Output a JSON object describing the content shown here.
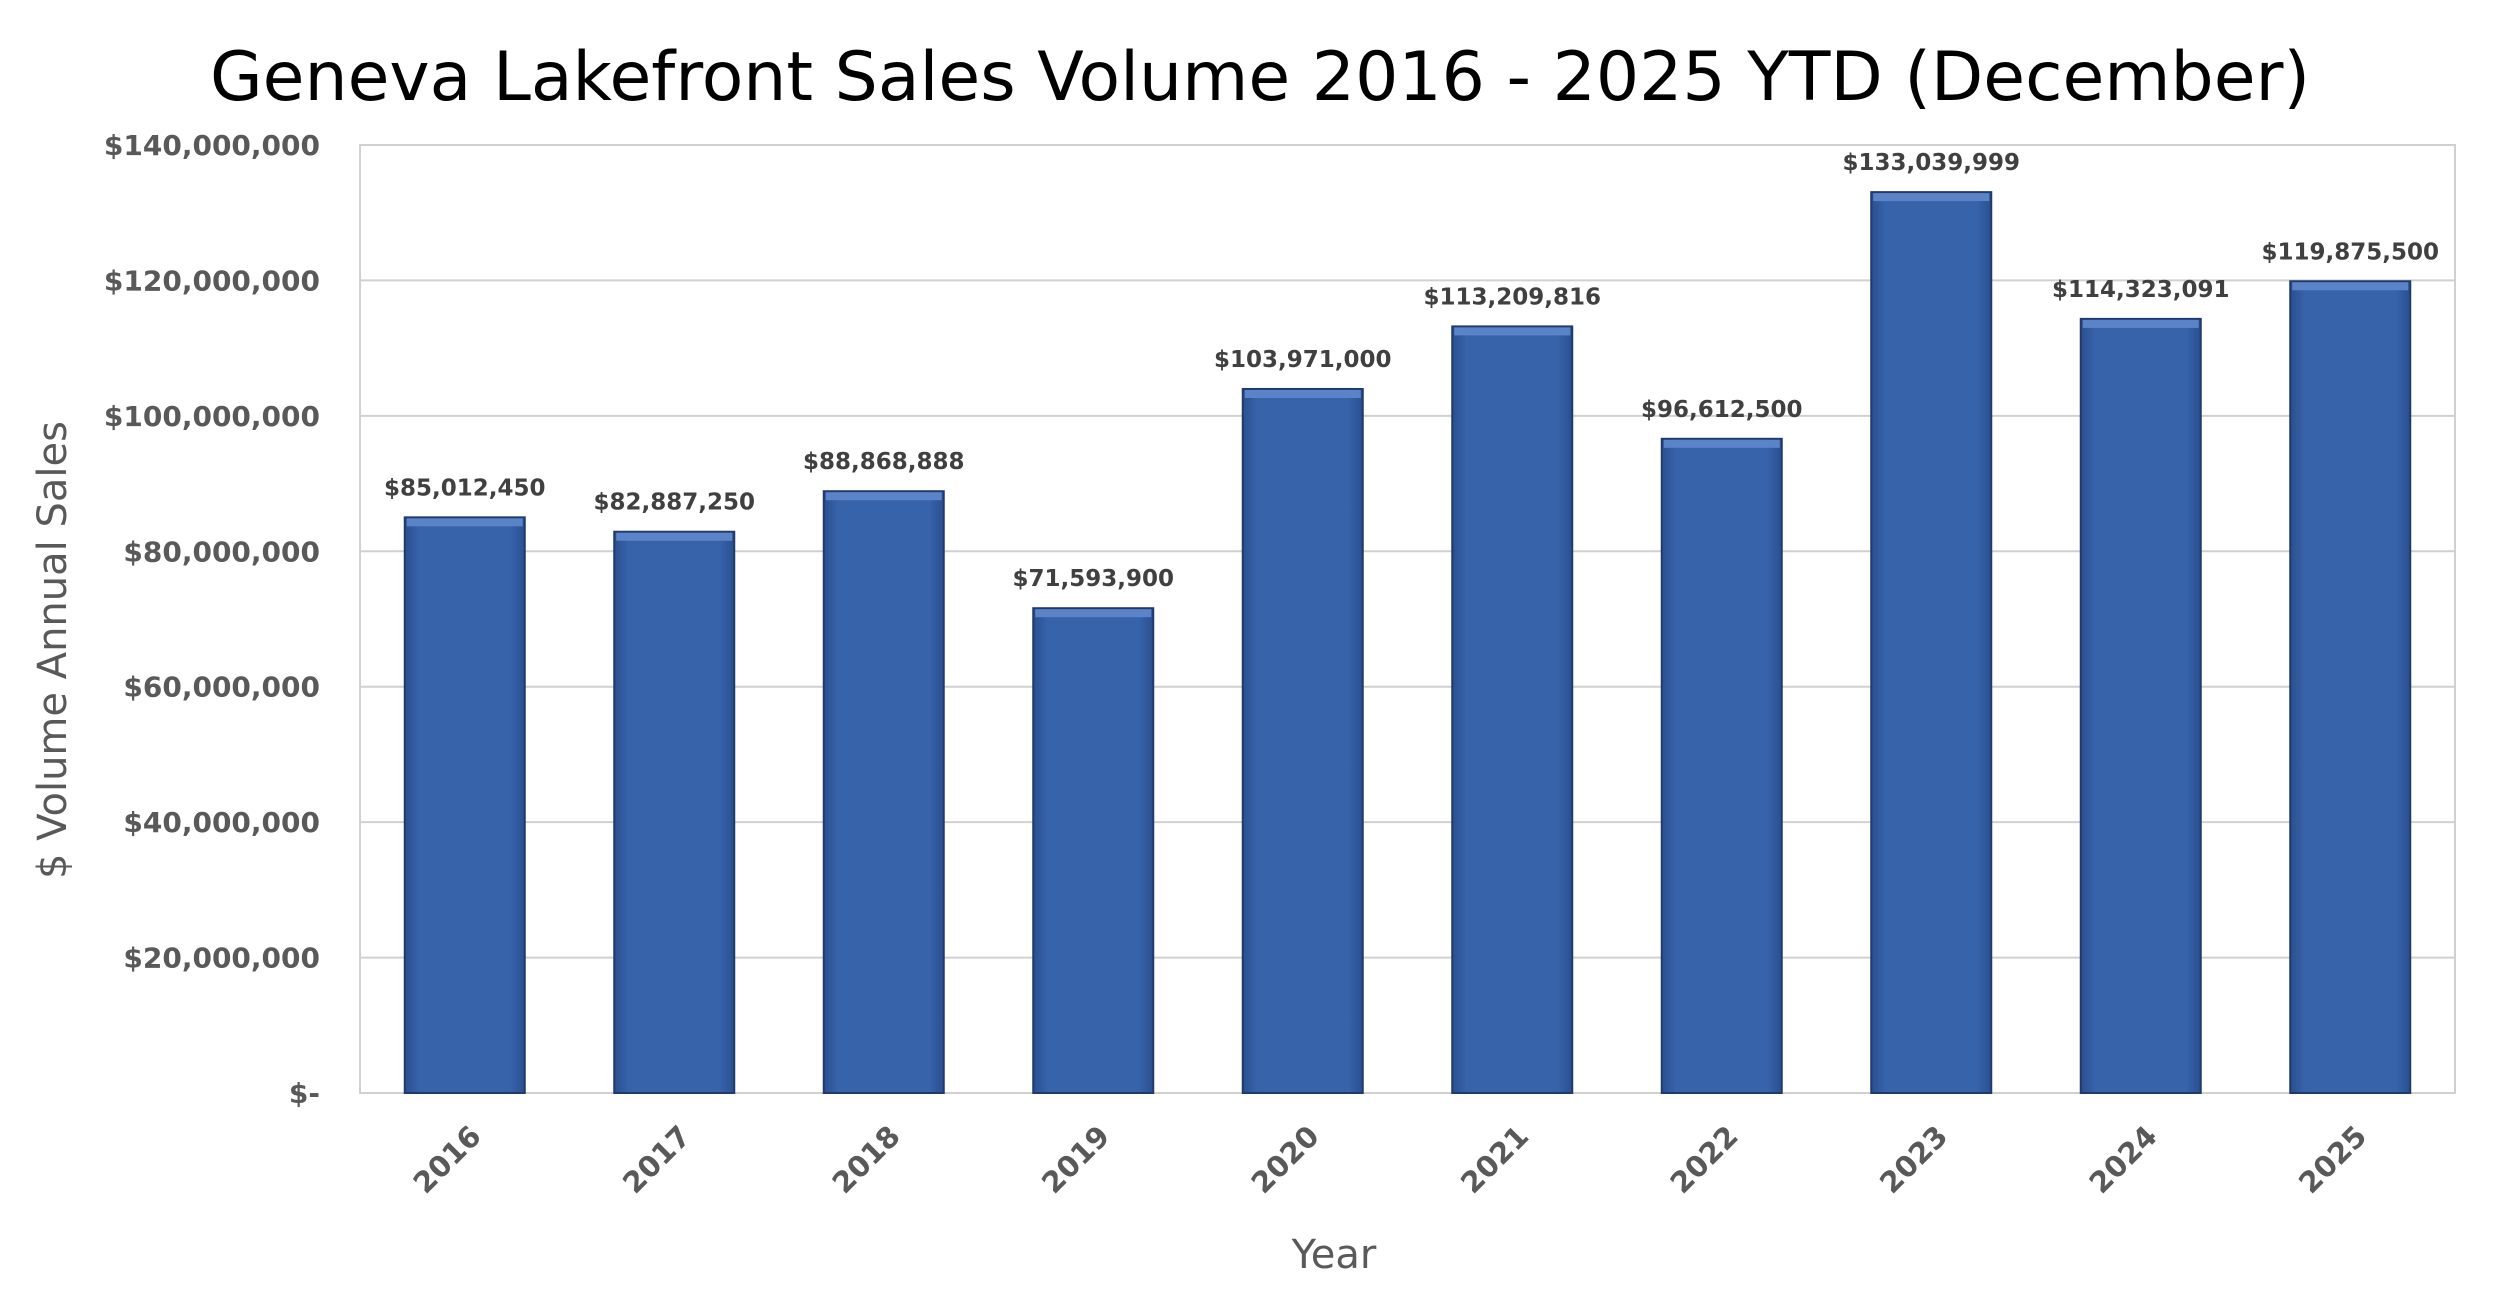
{
  "colors": {
    "bar_fill": "#3660a8",
    "bar_top": "#5b84c8",
    "bar_edge": "#22447f",
    "gridline": "#d0d0d0",
    "axis_text": "#595959",
    "label_text": "#404040",
    "title_text": "#000000"
  },
  "chart_data": {
    "type": "bar",
    "title": "Geneva Lakefront Sales Volume 2016 - 2025 YTD (December)",
    "xlabel": "Year",
    "ylabel": "$ Volume Annual Sales",
    "categories": [
      "2016",
      "2017",
      "2018",
      "2019",
      "2020",
      "2021",
      "2022",
      "2023",
      "2024",
      "2025"
    ],
    "values": [
      85012450,
      82887250,
      88868888,
      71593900,
      103971000,
      113209816,
      96612500,
      133039999,
      114323091,
      119875500
    ],
    "data_labels": [
      "$85,012,450",
      "$82,887,250",
      "$88,868,888",
      "$71,593,900",
      "$103,971,000",
      "$113,209,816",
      "$96,612,500",
      "$133,039,999",
      "$114,323,091",
      "$119,875,500"
    ],
    "ylim": [
      0,
      140000000
    ],
    "y_ticks": [
      0,
      20000000,
      40000000,
      60000000,
      80000000,
      100000000,
      120000000,
      140000000
    ],
    "y_tick_labels": [
      "$-",
      "$20,000,000",
      "$40,000,000",
      "$60,000,000",
      "$80,000,000",
      "$100,000,000",
      "$120,000,000",
      "$140,000,000"
    ],
    "grid": true,
    "legend": "none"
  }
}
